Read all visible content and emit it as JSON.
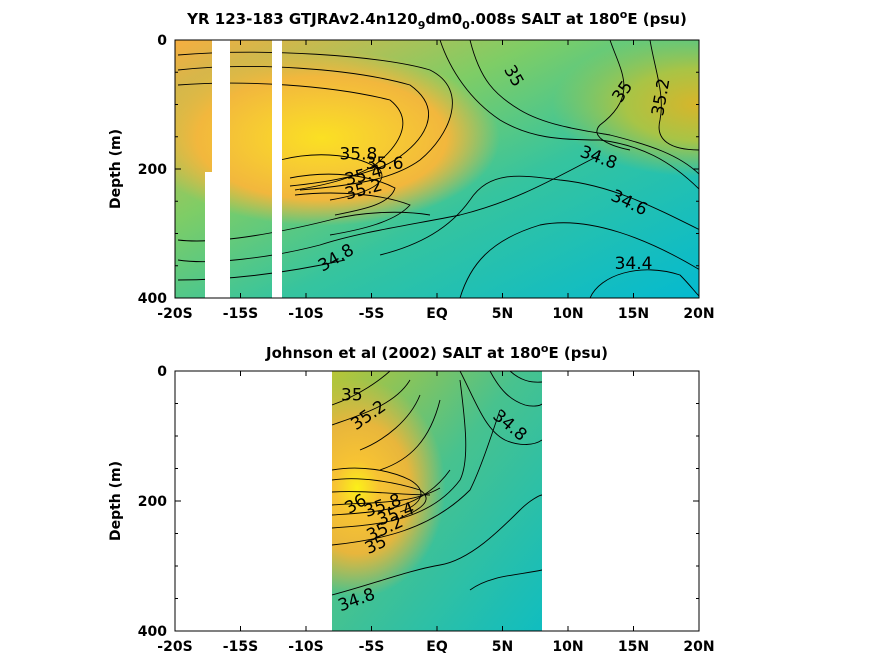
{
  "chart_data": [
    {
      "type": "heatmap",
      "title": "YR 123-183 GTJRAv2.4n120₉dm0₀.008s SALT at 180°E (psu)",
      "ylabel": "Depth (m)",
      "xlim": [
        -20,
        20
      ],
      "ylim": [
        400,
        0
      ],
      "x_ticks": [
        "-20S",
        "-15S",
        "-10S",
        "-5S",
        "EQ",
        "5N",
        "10N",
        "15N",
        "20N"
      ],
      "y_ticks": [
        "0",
        "200",
        "400"
      ],
      "colormap": [
        "#00b8d0",
        "#33c3a8",
        "#7ecc62",
        "#c8c230",
        "#f0b83c",
        "#fbe020"
      ],
      "contour_labels": [
        {
          "text": "35",
          "x": 5.5,
          "y": 60,
          "rot": 60
        },
        {
          "text": "35",
          "x": 14.5,
          "y": 85,
          "rot": -55
        },
        {
          "text": "35.2",
          "x": 17.5,
          "y": 90,
          "rot": -80
        },
        {
          "text": "35.8",
          "x": -6.0,
          "y": 185,
          "rot": 0
        },
        {
          "text": "35.6",
          "x": -4.0,
          "y": 200,
          "rot": 0
        },
        {
          "text": "35.4",
          "x": -5.5,
          "y": 218,
          "rot": -15
        },
        {
          "text": "35.2",
          "x": -5.5,
          "y": 240,
          "rot": -15
        },
        {
          "text": "34.8",
          "x": 12.2,
          "y": 190,
          "rot": 20
        },
        {
          "text": "34.6",
          "x": 14.5,
          "y": 260,
          "rot": 25
        },
        {
          "text": "34.8",
          "x": -7.5,
          "y": 345,
          "rot": -30
        },
        {
          "text": "34.4",
          "x": 15.0,
          "y": 355,
          "rot": 0
        }
      ],
      "masked_columns": [
        [
          -17.8,
          -16.9
        ],
        [
          -16.3,
          -16.9
        ],
        [
          -12.8,
          -12.3
        ]
      ]
    },
    {
      "type": "heatmap",
      "title": "Johnson et al (2002) SALT at 180°E (psu)",
      "ylabel": "Depth (m)",
      "xlim": [
        -20,
        20
      ],
      "ylim": [
        400,
        0
      ],
      "x_ticks": [
        "-20S",
        "-15S",
        "-10S",
        "-5S",
        "EQ",
        "5N",
        "10N",
        "15N",
        "20N"
      ],
      "y_ticks": [
        "0",
        "200",
        "400"
      ],
      "data_extent_x": [
        -8,
        8
      ],
      "contour_labels": [
        {
          "text": "35",
          "x": -6.5,
          "y": 45,
          "rot": 0
        },
        {
          "text": "35.2",
          "x": -5.0,
          "y": 75,
          "rot": -35
        },
        {
          "text": "34.8",
          "x": 5.3,
          "y": 90,
          "rot": 40
        },
        {
          "text": "36",
          "x": -6.0,
          "y": 212,
          "rot": -30
        },
        {
          "text": "35.8",
          "x": -4.0,
          "y": 215,
          "rot": -20
        },
        {
          "text": "35.4",
          "x": -3.0,
          "y": 228,
          "rot": -20
        },
        {
          "text": "35.2",
          "x": -3.8,
          "y": 250,
          "rot": -25
        },
        {
          "text": "35",
          "x": -4.5,
          "y": 275,
          "rot": -25
        },
        {
          "text": "34.8",
          "x": -6.0,
          "y": 360,
          "rot": -20
        }
      ]
    }
  ]
}
